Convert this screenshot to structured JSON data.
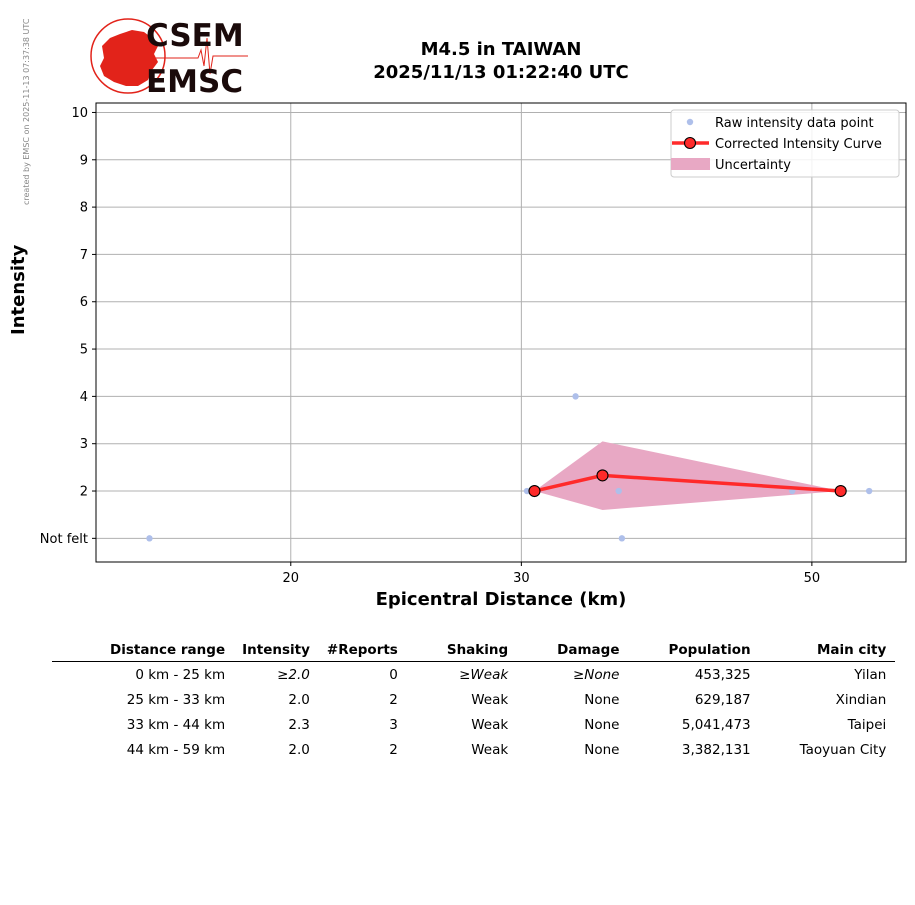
{
  "credit": "created by EMSC on 2025-11-13 07:37:38 UTC",
  "logo": {
    "line1": "CSEM",
    "line2": "EMSC",
    "colors": {
      "red": "#e2231a",
      "dark": "#1a0a0a"
    }
  },
  "title": {
    "line1": "M4.5 in TAIWAN",
    "line2": "2025/11/13 01:22:40 UTC"
  },
  "chart_data": {
    "type": "scatter",
    "xlabel": "Epicentral Distance (km)",
    "ylabel": "Intensity",
    "x_scale": "log",
    "xlim": [
      14.2,
      59
    ],
    "ylim": [
      0.5,
      10.2
    ],
    "x_ticks": [
      {
        "value": 20,
        "label": "20"
      },
      {
        "value": 30,
        "label": "30"
      },
      {
        "value": 50,
        "label": "50"
      }
    ],
    "y_ticks": [
      {
        "value": 1,
        "label": "Not felt"
      },
      {
        "value": 2,
        "label": "2"
      },
      {
        "value": 3,
        "label": "3"
      },
      {
        "value": 4,
        "label": "4"
      },
      {
        "value": 5,
        "label": "5"
      },
      {
        "value": 6,
        "label": "6"
      },
      {
        "value": 7,
        "label": "7"
      },
      {
        "value": 8,
        "label": "8"
      },
      {
        "value": 9,
        "label": "9"
      },
      {
        "value": 10,
        "label": "10"
      }
    ],
    "grid": true,
    "legend_position": "top-right",
    "legend": [
      {
        "label": "Raw intensity data point",
        "kind": "point",
        "color": "#aebfea"
      },
      {
        "label": "Corrected Intensity Curve",
        "kind": "line-marker",
        "color": "#ff2a2a"
      },
      {
        "label": "Uncertainty",
        "kind": "band",
        "color": "#e8a8c4"
      }
    ],
    "series": [
      {
        "name": "Raw intensity data point",
        "color": "#aebfea",
        "points": [
          {
            "x": 15.6,
            "y": 1
          },
          {
            "x": 30.3,
            "y": 2
          },
          {
            "x": 33.0,
            "y": 4
          },
          {
            "x": 35.6,
            "y": 2
          },
          {
            "x": 35.8,
            "y": 1
          },
          {
            "x": 48.3,
            "y": 2
          },
          {
            "x": 55.3,
            "y": 2
          }
        ]
      },
      {
        "name": "Corrected Intensity Curve",
        "color": "#ff2a2a",
        "points": [
          {
            "x": 30.7,
            "y": 2.0
          },
          {
            "x": 34.6,
            "y": 2.33
          },
          {
            "x": 52.6,
            "y": 2.0
          }
        ]
      },
      {
        "name": "Uncertainty",
        "color": "#e8a8c4",
        "x": [
          30.7,
          34.6,
          52.6
        ],
        "upper": [
          2.0,
          3.05,
          2.0
        ],
        "lower": [
          2.0,
          1.6,
          2.0
        ]
      }
    ]
  },
  "table": {
    "headers": [
      "Distance range",
      "Intensity",
      "#Reports",
      "Shaking",
      "Damage",
      "Population",
      "Main city"
    ],
    "rows": [
      {
        "range": "0 km -   25 km",
        "intensity": "≥2.0",
        "reports": "0",
        "shaking": "≥Weak",
        "damage": "≥None",
        "population": "453,325",
        "city": "Yilan",
        "italic": true
      },
      {
        "range": "25 km -   33 km",
        "intensity": "2.0",
        "reports": "2",
        "shaking": "Weak",
        "damage": "None",
        "population": "629,187",
        "city": "Xindian",
        "italic": false
      },
      {
        "range": "33 km -   44 km",
        "intensity": "2.3",
        "reports": "3",
        "shaking": "Weak",
        "damage": "None",
        "population": "5,041,473",
        "city": "Taipei",
        "italic": false
      },
      {
        "range": "44 km -   59 km",
        "intensity": "2.0",
        "reports": "2",
        "shaking": "Weak",
        "damage": "None",
        "population": "3,382,131",
        "city": "Taoyuan City",
        "italic": false
      }
    ]
  }
}
